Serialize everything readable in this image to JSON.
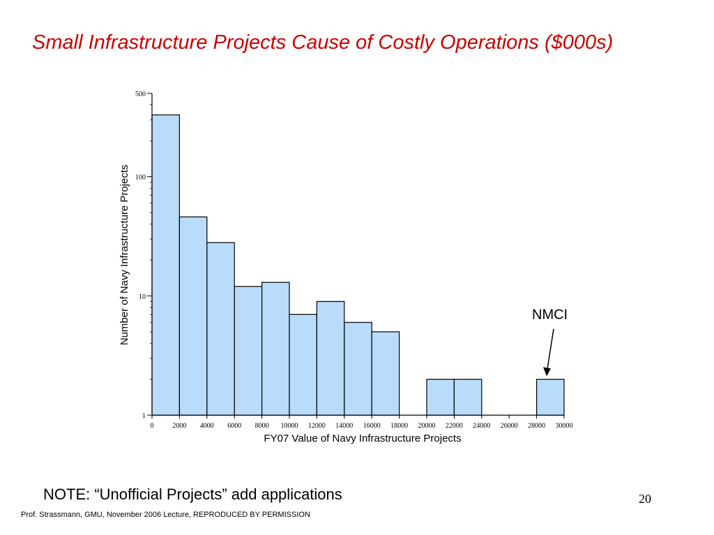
{
  "slide": {
    "title": "Small Infrastructure Projects Cause of Costly Operations ($000s)",
    "note": "NOTE: “Unofficial Projects” add applications",
    "page_number": "20",
    "footer": "Prof. Strassmann, GMU, November 2006 Lecture,  REPRODUCED BY PERMISSION"
  },
  "chart_data": {
    "type": "bar",
    "title": "",
    "xlabel": "FY07 Value of Navy Infrastructure Projects",
    "ylabel": "Number of Navy Infrastructure Projects",
    "y_scale": "log",
    "ylim": [
      1,
      500
    ],
    "xlim": [
      0,
      30000
    ],
    "x_ticks": [
      0,
      2000,
      4000,
      6000,
      8000,
      10000,
      12000,
      14000,
      16000,
      18000,
      20000,
      22000,
      24000,
      26000,
      28000,
      30000
    ],
    "y_ticks": [
      1,
      10,
      100,
      500
    ],
    "bin_width": 2000,
    "bins": [
      {
        "x0": 0,
        "x1": 2000,
        "count": 330
      },
      {
        "x0": 2000,
        "x1": 4000,
        "count": 46
      },
      {
        "x0": 4000,
        "x1": 6000,
        "count": 28
      },
      {
        "x0": 6000,
        "x1": 8000,
        "count": 12
      },
      {
        "x0": 8000,
        "x1": 10000,
        "count": 13
      },
      {
        "x0": 10000,
        "x1": 12000,
        "count": 7
      },
      {
        "x0": 12000,
        "x1": 14000,
        "count": 9
      },
      {
        "x0": 14000,
        "x1": 16000,
        "count": 6
      },
      {
        "x0": 16000,
        "x1": 18000,
        "count": 5
      },
      {
        "x0": 20000,
        "x1": 22000,
        "count": 2
      },
      {
        "x0": 22000,
        "x1": 24000,
        "count": 2
      },
      {
        "x0": 28000,
        "x1": 30000,
        "count": 2
      }
    ],
    "bar_color": "#b9dcfc",
    "bar_edge_color": "#000000",
    "annotation": {
      "text": "NMCI",
      "target_x": 29000,
      "target_count": 2
    }
  }
}
